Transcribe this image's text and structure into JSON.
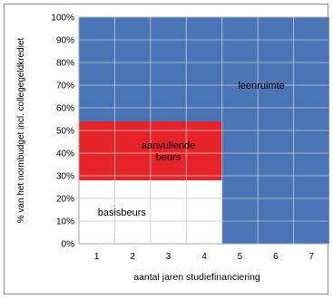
{
  "chart_data": {
    "type": "area",
    "xlabel": "aantal jaren studiefinanciering",
    "ylabel": "% van het normbudget incl. collegegeldkrediet",
    "x_ticks": [
      "1",
      "2",
      "3",
      "4",
      "5",
      "6",
      "7"
    ],
    "y_ticks": [
      "0%",
      "10%",
      "20%",
      "30%",
      "40%",
      "50%",
      "60%",
      "70%",
      "80%",
      "90%",
      "100%"
    ],
    "xlim": [
      0.5,
      7.5
    ],
    "ylim": [
      0,
      100
    ],
    "grid": true,
    "regions": [
      {
        "label": "basisbeurs",
        "color": "#ffffff",
        "x_range": [
          0.5,
          4.5
        ],
        "y_range": [
          0,
          28
        ],
        "label_at": [
          1.7,
          14
        ]
      },
      {
        "label": "aanvullende beurs",
        "label_lines": [
          "aanvullende",
          "beurs"
        ],
        "color": "#e52329",
        "x_range": [
          0.5,
          4.5
        ],
        "y_range": [
          28,
          54
        ],
        "label_at": [
          3.0,
          41
        ]
      },
      {
        "label": "leenruimte",
        "color": "#4a76b8",
        "polygon": [
          [
            0.5,
            54
          ],
          [
            4.5,
            54
          ],
          [
            4.5,
            0
          ],
          [
            7.5,
            0
          ],
          [
            7.5,
            100
          ],
          [
            0.5,
            100
          ]
        ],
        "label_at": [
          5.6,
          70
        ]
      }
    ]
  }
}
